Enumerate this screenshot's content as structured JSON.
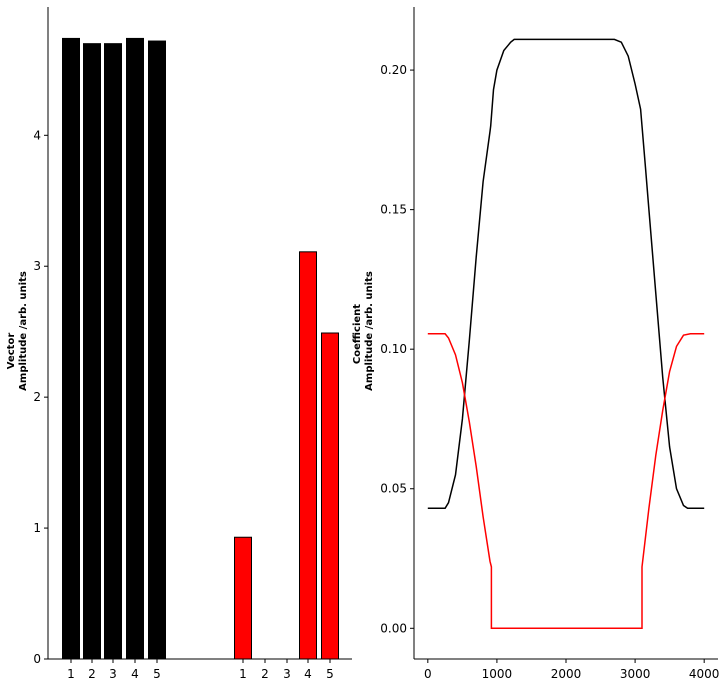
{
  "chart_data": [
    {
      "type": "bar",
      "ylabel_line1": "Vector",
      "ylabel_line2": "Amplitude /arb. units",
      "ylim": [
        0,
        4.98
      ],
      "yticks": [
        0,
        1,
        2,
        3,
        4
      ],
      "groups": [
        {
          "color": "#000000",
          "categories": [
            "1",
            "2",
            "3",
            "4",
            "5"
          ],
          "values": [
            4.74,
            4.7,
            4.7,
            4.74,
            4.72
          ]
        },
        {
          "color": "#ff0000",
          "categories": [
            "1",
            "2",
            "3",
            "4",
            "5"
          ],
          "values": [
            0.93,
            0,
            0,
            3.11,
            2.49
          ]
        }
      ],
      "grid": false
    },
    {
      "type": "line",
      "ylabel_line1": "Coefficient",
      "ylabel_line2": "Amplitude /arb. units",
      "xlim": [
        -200,
        4200
      ],
      "ylim": [
        -0.011,
        0.2226
      ],
      "xticks": [
        0,
        1000,
        2000,
        3000,
        4000
      ],
      "yticks": [
        0.0,
        0.05,
        0.1,
        0.15,
        0.2
      ],
      "ytick_labels": [
        "0.00",
        "0.05",
        "0.10",
        "0.15",
        "0.20"
      ],
      "grid": false,
      "series": [
        {
          "color": "#000000",
          "x": [
            0,
            250,
            300,
            400,
            500,
            600,
            700,
            800,
            900,
            910,
            950,
            1000,
            1100,
            1200,
            1250,
            2700,
            2800,
            2900,
            3000,
            3080,
            3100,
            3150,
            3200,
            3300,
            3400,
            3500,
            3600,
            3700,
            3760,
            4000
          ],
          "y": [
            0.043,
            0.043,
            0.045,
            0.055,
            0.075,
            0.103,
            0.133,
            0.16,
            0.178,
            0.18,
            0.193,
            0.2,
            0.207,
            0.21,
            0.211,
            0.211,
            0.21,
            0.205,
            0.195,
            0.186,
            0.18,
            0.165,
            0.15,
            0.12,
            0.09,
            0.065,
            0.05,
            0.044,
            0.043,
            0.043
          ]
        },
        {
          "color": "#ff0000",
          "x": [
            0,
            250,
            300,
            400,
            500,
            600,
            700,
            800,
            900,
            920,
            920,
            3100,
            3100,
            3200,
            3300,
            3400,
            3500,
            3600,
            3700,
            3800,
            4000
          ],
          "y": [
            0.1055,
            0.1055,
            0.104,
            0.098,
            0.088,
            0.074,
            0.058,
            0.04,
            0.024,
            0.022,
            0.0,
            0.0,
            0.022,
            0.043,
            0.062,
            0.078,
            0.092,
            0.101,
            0.105,
            0.1055,
            0.1055
          ]
        }
      ]
    }
  ]
}
